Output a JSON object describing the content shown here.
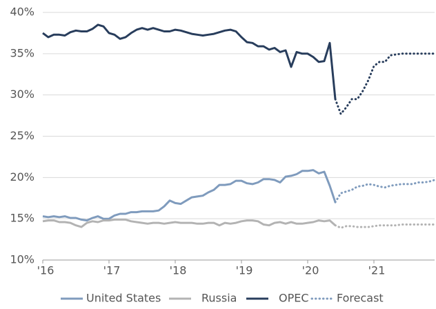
{
  "chart_data": {
    "type": "line",
    "categories": [
      "'16",
      null,
      null,
      null,
      null,
      null,
      null,
      null,
      null,
      null,
      null,
      null,
      "'17",
      null,
      null,
      null,
      null,
      null,
      null,
      null,
      null,
      null,
      null,
      null,
      "'18",
      null,
      null,
      null,
      null,
      null,
      null,
      null,
      null,
      null,
      null,
      null,
      "'19",
      null,
      null,
      null,
      null,
      null,
      null,
      null,
      null,
      null,
      null,
      null,
      "'20",
      null,
      null,
      null,
      null,
      null,
      null,
      null,
      null,
      null,
      null,
      null,
      "'21",
      null,
      null,
      null,
      null,
      null,
      null,
      null,
      null,
      null,
      null,
      null
    ],
    "ylim": [
      10,
      40
    ],
    "yticks": [
      {
        "value": 10,
        "label": "10%"
      },
      {
        "value": 15,
        "label": "15%"
      },
      {
        "value": 20,
        "label": "20%"
      },
      {
        "value": 25,
        "label": "25%"
      },
      {
        "value": 30,
        "label": "30%"
      },
      {
        "value": 35,
        "label": "35%"
      },
      {
        "value": 40,
        "label": "40%"
      }
    ],
    "grid": true,
    "legend": "bottom",
    "forecast_label": "Forecast",
    "forecast_color": "#7f9bbd",
    "series": [
      {
        "name": "United States",
        "color": "#7f9bbd",
        "values": [
          15.3,
          15.2,
          15.3,
          15.2,
          15.3,
          15.1,
          15.1,
          14.9,
          14.8,
          15.1,
          15.3,
          15.0,
          15.0,
          15.4,
          15.6,
          15.6,
          15.8,
          15.8,
          15.9,
          15.9,
          15.9,
          16.0,
          16.5,
          17.2,
          16.9,
          16.8,
          17.2,
          17.6,
          17.7,
          17.8,
          18.2,
          18.5,
          19.1,
          19.1,
          19.2,
          19.6,
          19.6,
          19.3,
          19.2,
          19.4,
          19.8,
          19.8,
          19.7,
          19.4,
          20.1,
          20.2,
          20.4,
          20.8,
          20.8,
          20.9,
          20.5,
          20.7,
          19.0,
          17.0,
          null,
          null,
          null,
          null,
          null,
          null,
          null,
          null,
          null,
          null,
          null,
          null,
          null,
          null,
          null,
          null,
          null,
          null
        ],
        "forecast": [
          null,
          null,
          null,
          null,
          null,
          null,
          null,
          null,
          null,
          null,
          null,
          null,
          null,
          null,
          null,
          null,
          null,
          null,
          null,
          null,
          null,
          null,
          null,
          null,
          null,
          null,
          null,
          null,
          null,
          null,
          null,
          null,
          null,
          null,
          null,
          null,
          null,
          null,
          null,
          null,
          null,
          null,
          null,
          null,
          null,
          null,
          null,
          null,
          null,
          null,
          null,
          null,
          null,
          17.0,
          18.1,
          18.3,
          18.5,
          18.9,
          19.0,
          19.2,
          19.1,
          18.9,
          18.8,
          19.0,
          19.1,
          19.2,
          19.2,
          19.2,
          19.4,
          19.4,
          19.5,
          19.7
        ]
      },
      {
        "name": "Russia",
        "color": "#b3b3b3",
        "values": [
          14.7,
          14.8,
          14.8,
          14.6,
          14.6,
          14.5,
          14.2,
          14.0,
          14.5,
          14.7,
          14.6,
          14.8,
          14.8,
          14.9,
          14.9,
          14.9,
          14.7,
          14.6,
          14.5,
          14.4,
          14.5,
          14.5,
          14.4,
          14.5,
          14.6,
          14.5,
          14.5,
          14.5,
          14.4,
          14.4,
          14.5,
          14.5,
          14.2,
          14.5,
          14.4,
          14.5,
          14.7,
          14.8,
          14.8,
          14.7,
          14.3,
          14.2,
          14.5,
          14.6,
          14.4,
          14.6,
          14.4,
          14.4,
          14.5,
          14.6,
          14.8,
          14.7,
          14.8,
          14.2,
          null,
          null,
          null,
          null,
          null,
          null,
          null,
          null,
          null,
          null,
          null,
          null,
          null,
          null,
          null,
          null,
          null,
          null
        ],
        "forecast": [
          null,
          null,
          null,
          null,
          null,
          null,
          null,
          null,
          null,
          null,
          null,
          null,
          null,
          null,
          null,
          null,
          null,
          null,
          null,
          null,
          null,
          null,
          null,
          null,
          null,
          null,
          null,
          null,
          null,
          null,
          null,
          null,
          null,
          null,
          null,
          null,
          null,
          null,
          null,
          null,
          null,
          null,
          null,
          null,
          null,
          null,
          null,
          null,
          null,
          null,
          null,
          null,
          null,
          14.2,
          13.9,
          14.1,
          14.1,
          14.0,
          14.0,
          14.0,
          14.1,
          14.2,
          14.2,
          14.2,
          14.2,
          14.3,
          14.3,
          14.3,
          14.3,
          14.3,
          14.3,
          14.3
        ]
      },
      {
        "name": "OPEC",
        "color": "#283d5c",
        "values": [
          37.5,
          37.0,
          37.3,
          37.3,
          37.2,
          37.6,
          37.8,
          37.7,
          37.7,
          38.0,
          38.5,
          38.3,
          37.5,
          37.3,
          36.8,
          37.0,
          37.5,
          37.9,
          38.1,
          37.9,
          38.1,
          37.9,
          37.7,
          37.7,
          37.9,
          37.8,
          37.6,
          37.4,
          37.3,
          37.2,
          37.3,
          37.4,
          37.6,
          37.8,
          37.9,
          37.7,
          37.0,
          36.4,
          36.3,
          35.9,
          35.9,
          35.5,
          35.7,
          35.2,
          35.4,
          33.4,
          35.2,
          35.0,
          35.0,
          34.6,
          34.0,
          34.1,
          36.3,
          29.5,
          null,
          null,
          null,
          null,
          null,
          null,
          null,
          null,
          null,
          null,
          null,
          null,
          null,
          null,
          null,
          null,
          null,
          null
        ],
        "forecast": [
          null,
          null,
          null,
          null,
          null,
          null,
          null,
          null,
          null,
          null,
          null,
          null,
          null,
          null,
          null,
          null,
          null,
          null,
          null,
          null,
          null,
          null,
          null,
          null,
          null,
          null,
          null,
          null,
          null,
          null,
          null,
          null,
          null,
          null,
          null,
          null,
          null,
          null,
          null,
          null,
          null,
          null,
          null,
          null,
          null,
          null,
          null,
          null,
          null,
          null,
          null,
          null,
          null,
          29.5,
          27.7,
          28.5,
          29.5,
          29.5,
          30.5,
          31.8,
          33.5,
          34.0,
          34.0,
          34.8,
          34.9,
          35.0,
          35.0,
          35.0,
          35.0,
          35.0,
          35.0,
          35.0
        ]
      }
    ]
  }
}
